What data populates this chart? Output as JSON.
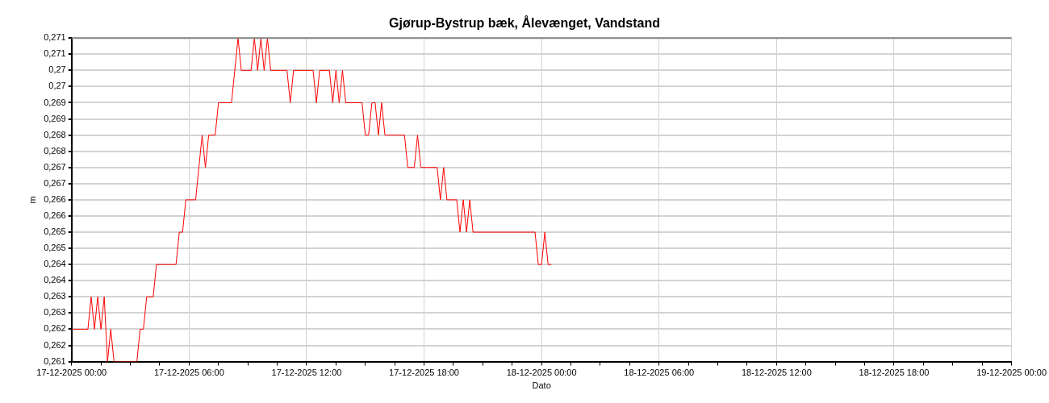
{
  "chart_data": {
    "type": "line",
    "title": "Gjørup-Bystrup bæk, Ålevænget, Vandstand",
    "xlabel": "Dato",
    "ylabel": "m",
    "x": [
      "2025-12-17T00:00",
      "2025-12-17T00:50",
      "2025-12-17T01:00",
      "2025-12-17T01:10",
      "2025-12-17T01:20",
      "2025-12-17T01:30",
      "2025-12-17T01:40",
      "2025-12-17T01:50",
      "2025-12-17T02:00",
      "2025-12-17T02:10",
      "2025-12-17T03:20",
      "2025-12-17T03:30",
      "2025-12-17T03:40",
      "2025-12-17T03:50",
      "2025-12-17T04:10",
      "2025-12-17T04:20",
      "2025-12-17T05:20",
      "2025-12-17T05:30",
      "2025-12-17T05:40",
      "2025-12-17T05:50",
      "2025-12-17T06:20",
      "2025-12-17T06:40",
      "2025-12-17T06:50",
      "2025-12-17T07:00",
      "2025-12-17T07:20",
      "2025-12-17T07:30",
      "2025-12-17T08:10",
      "2025-12-17T08:30",
      "2025-12-17T08:40",
      "2025-12-17T09:10",
      "2025-12-17T09:20",
      "2025-12-17T09:30",
      "2025-12-17T09:40",
      "2025-12-17T09:50",
      "2025-12-17T10:00",
      "2025-12-17T10:10",
      "2025-12-17T11:00",
      "2025-12-17T11:10",
      "2025-12-17T11:20",
      "2025-12-17T12:20",
      "2025-12-17T12:30",
      "2025-12-17T12:40",
      "2025-12-17T13:10",
      "2025-12-17T13:20",
      "2025-12-17T13:30",
      "2025-12-17T13:40",
      "2025-12-17T13:50",
      "2025-12-17T14:00",
      "2025-12-17T14:50",
      "2025-12-17T15:00",
      "2025-12-17T15:10",
      "2025-12-17T15:20",
      "2025-12-17T15:30",
      "2025-12-17T15:40",
      "2025-12-17T15:50",
      "2025-12-17T16:00",
      "2025-12-17T17:00",
      "2025-12-17T17:10",
      "2025-12-17T17:30",
      "2025-12-17T17:40",
      "2025-12-17T17:50",
      "2025-12-17T18:40",
      "2025-12-17T18:50",
      "2025-12-17T19:00",
      "2025-12-17T19:10",
      "2025-12-17T19:40",
      "2025-12-17T19:50",
      "2025-12-17T20:00",
      "2025-12-17T20:10",
      "2025-12-17T20:20",
      "2025-12-17T20:30",
      "2025-12-17T23:40",
      "2025-12-17T23:50",
      "2025-12-18T00:00",
      "2025-12-18T00:10",
      "2025-12-18T00:20",
      "2025-12-18T00:30"
    ],
    "series": [
      {
        "color": "#ff0000",
        "values": [
          0.262,
          0.262,
          0.263,
          0.262,
          0.263,
          0.262,
          0.263,
          0.261,
          0.262,
          0.261,
          0.261,
          0.262,
          0.262,
          0.263,
          0.263,
          0.264,
          0.264,
          0.265,
          0.265,
          0.266,
          0.266,
          0.268,
          0.267,
          0.268,
          0.268,
          0.269,
          0.269,
          0.271,
          0.27,
          0.27,
          0.271,
          0.27,
          0.271,
          0.27,
          0.271,
          0.27,
          0.27,
          0.269,
          0.27,
          0.27,
          0.269,
          0.27,
          0.27,
          0.269,
          0.27,
          0.269,
          0.27,
          0.269,
          0.269,
          0.268,
          0.268,
          0.269,
          0.269,
          0.268,
          0.269,
          0.268,
          0.268,
          0.267,
          0.267,
          0.268,
          0.267,
          0.267,
          0.266,
          0.267,
          0.266,
          0.266,
          0.265,
          0.266,
          0.265,
          0.266,
          0.265,
          0.265,
          0.264,
          0.264,
          0.265,
          0.264,
          0.264
        ]
      }
    ],
    "xlim": [
      "2025-12-17T00:00",
      "2025-12-19T00:00"
    ],
    "xticks": [
      {
        "value": "2025-12-17T00:00",
        "label": "17-12-2025 00:00"
      },
      {
        "value": "2025-12-17T01:30",
        "label": null
      },
      {
        "value": "2025-12-17T03:00",
        "label": null
      },
      {
        "value": "2025-12-17T04:30",
        "label": null
      },
      {
        "value": "2025-12-17T06:00",
        "label": "17-12-2025 06:00"
      },
      {
        "value": "2025-12-17T07:30",
        "label": null
      },
      {
        "value": "2025-12-17T09:00",
        "label": null
      },
      {
        "value": "2025-12-17T10:30",
        "label": null
      },
      {
        "value": "2025-12-17T12:00",
        "label": "17-12-2025 12:00"
      },
      {
        "value": "2025-12-17T13:30",
        "label": null
      },
      {
        "value": "2025-12-17T15:00",
        "label": null
      },
      {
        "value": "2025-12-17T16:30",
        "label": null
      },
      {
        "value": "2025-12-17T18:00",
        "label": "17-12-2025 18:00"
      },
      {
        "value": "2025-12-17T19:30",
        "label": null
      },
      {
        "value": "2025-12-17T21:00",
        "label": null
      },
      {
        "value": "2025-12-17T22:30",
        "label": null
      },
      {
        "value": "2025-12-18T00:00",
        "label": "18-12-2025 00:00"
      },
      {
        "value": "2025-12-18T01:30",
        "label": null
      },
      {
        "value": "2025-12-18T03:00",
        "label": null
      },
      {
        "value": "2025-12-18T04:30",
        "label": null
      },
      {
        "value": "2025-12-18T06:00",
        "label": "18-12-2025 06:00"
      },
      {
        "value": "2025-12-18T07:30",
        "label": null
      },
      {
        "value": "2025-12-18T09:00",
        "label": null
      },
      {
        "value": "2025-12-18T10:30",
        "label": null
      },
      {
        "value": "2025-12-18T12:00",
        "label": "18-12-2025 12:00"
      },
      {
        "value": "2025-12-18T13:30",
        "label": null
      },
      {
        "value": "2025-12-18T15:00",
        "label": null
      },
      {
        "value": "2025-12-18T16:30",
        "label": null
      },
      {
        "value": "2025-12-18T18:00",
        "label": "18-12-2025 18:00"
      },
      {
        "value": "2025-12-18T19:30",
        "label": null
      },
      {
        "value": "2025-12-18T21:00",
        "label": null
      },
      {
        "value": "2025-12-18T22:30",
        "label": null
      },
      {
        "value": "2025-12-19T00:00",
        "label": "19-12-2025 00:00"
      }
    ],
    "ylim": [
      0.261,
      0.271
    ],
    "yticks": [
      {
        "value": 0.261,
        "label": "0,261"
      },
      {
        "value": 0.2615,
        "label": "0,262"
      },
      {
        "value": 0.262,
        "label": "0,262"
      },
      {
        "value": 0.2625,
        "label": "0,263"
      },
      {
        "value": 0.263,
        "label": "0,263"
      },
      {
        "value": 0.2635,
        "label": "0,264"
      },
      {
        "value": 0.264,
        "label": "0,264"
      },
      {
        "value": 0.2645,
        "label": "0,265"
      },
      {
        "value": 0.265,
        "label": "0,265"
      },
      {
        "value": 0.2655,
        "label": "0,266"
      },
      {
        "value": 0.266,
        "label": "0,266"
      },
      {
        "value": 0.2665,
        "label": "0,267"
      },
      {
        "value": 0.267,
        "label": "0,267"
      },
      {
        "value": 0.2675,
        "label": "0,268"
      },
      {
        "value": 0.268,
        "label": "0,268"
      },
      {
        "value": 0.2685,
        "label": "0,269"
      },
      {
        "value": 0.269,
        "label": "0,269"
      },
      {
        "value": 0.2695,
        "label": "0,27"
      },
      {
        "value": 0.27,
        "label": "0,27"
      },
      {
        "value": 0.2705,
        "label": "0,271"
      },
      {
        "value": 0.271,
        "label": "0,271"
      }
    ],
    "grid": true,
    "legend": false,
    "marker": "none",
    "line_style": "solid"
  }
}
